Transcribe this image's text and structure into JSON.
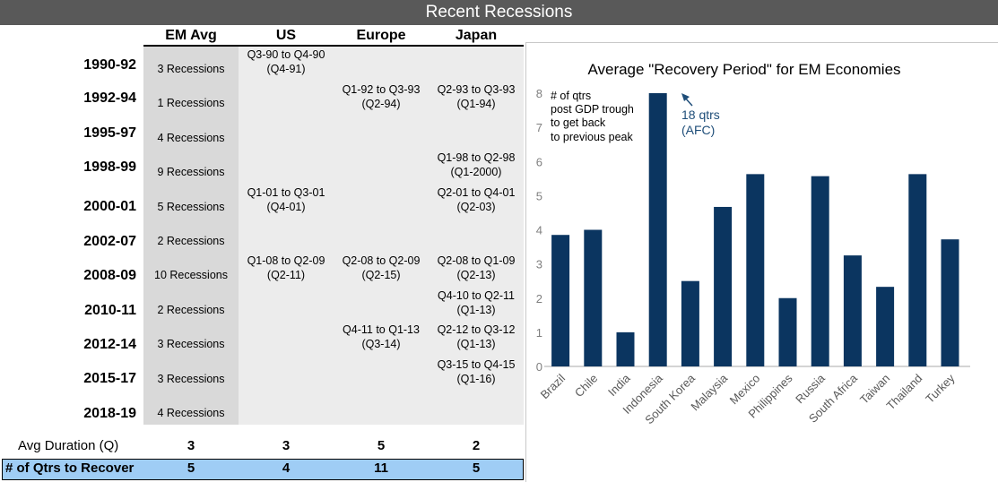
{
  "title": "Recent Recessions",
  "columns": [
    "EM Avg",
    "US",
    "Europe",
    "Japan"
  ],
  "years": [
    "1990-92",
    "1992-94",
    "1995-97",
    "1998-99",
    "2000-01",
    "2002-07",
    "2008-09",
    "2010-11",
    "2012-14",
    "2015-17",
    "2018-19"
  ],
  "em_avg": [
    "3 Recessions",
    "1 Recessions",
    "4 Recessions",
    "9 Recessions",
    "5 Recessions",
    "2 Recessions",
    "10 Recessions",
    "2 Recessions",
    "3 Recessions",
    "3 Recessions",
    "4 Recessions"
  ],
  "us": [
    {
      "period": "Q3-90 to Q4-90",
      "recovery": "(Q4-91)"
    },
    {
      "period": "Q1-01 to Q3-01",
      "recovery": "(Q4-01)"
    },
    {
      "period": "Q1-08 to Q2-09",
      "recovery": "(Q2-11)"
    }
  ],
  "europe": [
    {
      "period": "Q1-92 to Q3-93",
      "recovery": "(Q2-94)"
    },
    {
      "period": "Q2-08 to Q2-09",
      "recovery": "(Q2-15)"
    },
    {
      "period": "Q4-11 to Q1-13",
      "recovery": "(Q3-14)"
    }
  ],
  "japan": [
    {
      "period": "Q2-93 to Q3-93",
      "recovery": "(Q1-94)"
    },
    {
      "period": "Q1-98 to Q2-98",
      "recovery": "(Q1-2000)"
    },
    {
      "period": "Q2-01 to Q4-01",
      "recovery": "(Q2-03)"
    },
    {
      "period": "Q2-08 to Q1-09",
      "recovery": "(Q2-13)"
    },
    {
      "period": "Q4-10 to Q2-11",
      "recovery": "(Q1-13)"
    },
    {
      "period": "Q2-12 to Q3-12",
      "recovery": "(Q1-13)"
    },
    {
      "period": "Q3-15 to Q4-15",
      "recovery": "(Q1-16)"
    }
  ],
  "summary": {
    "avg_duration_label": "Avg Duration (Q)",
    "avg_duration": [
      "3",
      "3",
      "5",
      "2"
    ],
    "recover_label": "# of Qtrs to Recover",
    "recover": [
      "5",
      "4",
      "11",
      "5"
    ]
  },
  "colors": {
    "bar": "#0b3560",
    "header": "#595959",
    "highlight": "#9fcdf5",
    "annotation": "#1f4e79"
  },
  "chart_data": {
    "type": "bar",
    "title": "Average \"Recovery Period\" for EM Economies",
    "categories": [
      "Brazil",
      "Chile",
      "India",
      "Indonesia",
      "South Korea",
      "Malaysia",
      "Mexico",
      "Philippines",
      "Russia",
      "South Africa",
      "Taiwan",
      "Thailand",
      "Turkey"
    ],
    "values": [
      3.85,
      4.0,
      1.0,
      8.0,
      2.5,
      4.67,
      5.63,
      2.0,
      5.57,
      3.25,
      2.33,
      5.63,
      3.72
    ],
    "ylim": [
      0,
      8
    ],
    "yticks": [
      "0",
      "1",
      "2",
      "3",
      "4",
      "5",
      "6",
      "7",
      "8"
    ],
    "legend_note": [
      "# of qtrs",
      "post GDP trough",
      "to get back",
      "to previous  peak"
    ],
    "annotation": [
      "18 qtrs",
      "(AFC)"
    ],
    "xlabel": "",
    "ylabel": ""
  }
}
